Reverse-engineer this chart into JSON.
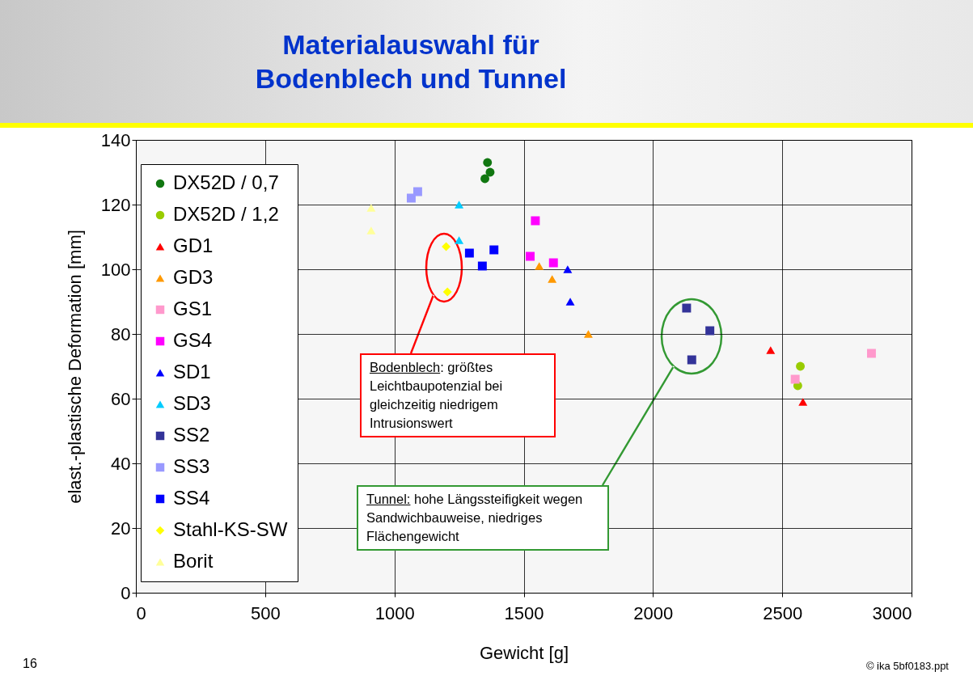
{
  "chart_data": {
    "type": "scatter",
    "title": "Materialauswahl für\nBodenblech und Tunnel",
    "xlabel": "Gewicht [g]",
    "ylabel": "elast.-plastische Deformation [mm]",
    "xlim": [
      0,
      3000
    ],
    "xticks": [
      0,
      500,
      1000,
      1500,
      2000,
      2500,
      3000
    ],
    "ylim": [
      0,
      140
    ],
    "yticks": [
      0,
      20,
      40,
      60,
      80,
      100,
      120,
      140
    ],
    "grid": true,
    "legend": "left",
    "series": [
      {
        "name": "DX52D / 0,7",
        "color": "#117711",
        "marker": "circle",
        "x": [
          1360,
          1370,
          1350
        ],
        "values": [
          133,
          130,
          128
        ]
      },
      {
        "name": "DX52D / 1,2",
        "color": "#99cc00",
        "marker": "circle",
        "x": [
          2570,
          2560
        ],
        "values": [
          70,
          64
        ]
      },
      {
        "name": "GD1",
        "color": "#ff0000",
        "marker": "triangle",
        "x": [
          2455,
          2580
        ],
        "values": [
          75,
          59
        ]
      },
      {
        "name": "GD3",
        "color": "#ff9900",
        "marker": "triangle",
        "x": [
          1560,
          1610,
          1750
        ],
        "values": [
          101,
          97,
          80
        ]
      },
      {
        "name": "GS1",
        "color": "#ff99cc",
        "marker": "square",
        "x": [
          2550,
          2845
        ],
        "values": [
          66,
          74
        ]
      },
      {
        "name": "GS4",
        "color": "#ff00ff",
        "marker": "square",
        "x": [
          1545,
          1525,
          1615
        ],
        "values": [
          115,
          104,
          102
        ]
      },
      {
        "name": "SD1",
        "color": "#0000ff",
        "marker": "triangle",
        "x": [
          1670,
          1680
        ],
        "values": [
          100,
          90
        ]
      },
      {
        "name": "SD3",
        "color": "#00ccff",
        "marker": "triangle",
        "x": [
          1250,
          1250
        ],
        "values": [
          120,
          109
        ]
      },
      {
        "name": "SS2",
        "color": "#333399",
        "marker": "square",
        "x": [
          2130,
          2220,
          2150
        ],
        "values": [
          88,
          81,
          72
        ]
      },
      {
        "name": "SS3",
        "color": "#9999ff",
        "marker": "square",
        "x": [
          1065,
          1090
        ],
        "values": [
          122,
          124
        ]
      },
      {
        "name": "SS4",
        "color": "#0000fe",
        "marker": "square",
        "x": [
          1290,
          1385,
          1340
        ],
        "values": [
          105,
          106,
          101
        ]
      },
      {
        "name": "Stahl-KS-SW",
        "color": "#ffff00",
        "marker": "diamond",
        "x": [
          1200,
          1205
        ],
        "values": [
          107,
          93
        ]
      },
      {
        "name": "Borit",
        "color": "#ffff99",
        "marker": "triangle",
        "x": [
          910,
          910
        ],
        "values": [
          119,
          112
        ]
      }
    ],
    "annotations": [
      {
        "text": "Bodenblech: größtes Leichtbaupotenzial bei gleichzeitig niedrigem Intrusionswert"
      },
      {
        "text": "Tunnel: hohe Längssteifigkeit wegen Sandwichbauweise, niedriges Flächengewicht"
      },
      "16",
      "© ika 5bf0183.ppt"
    ]
  }
}
